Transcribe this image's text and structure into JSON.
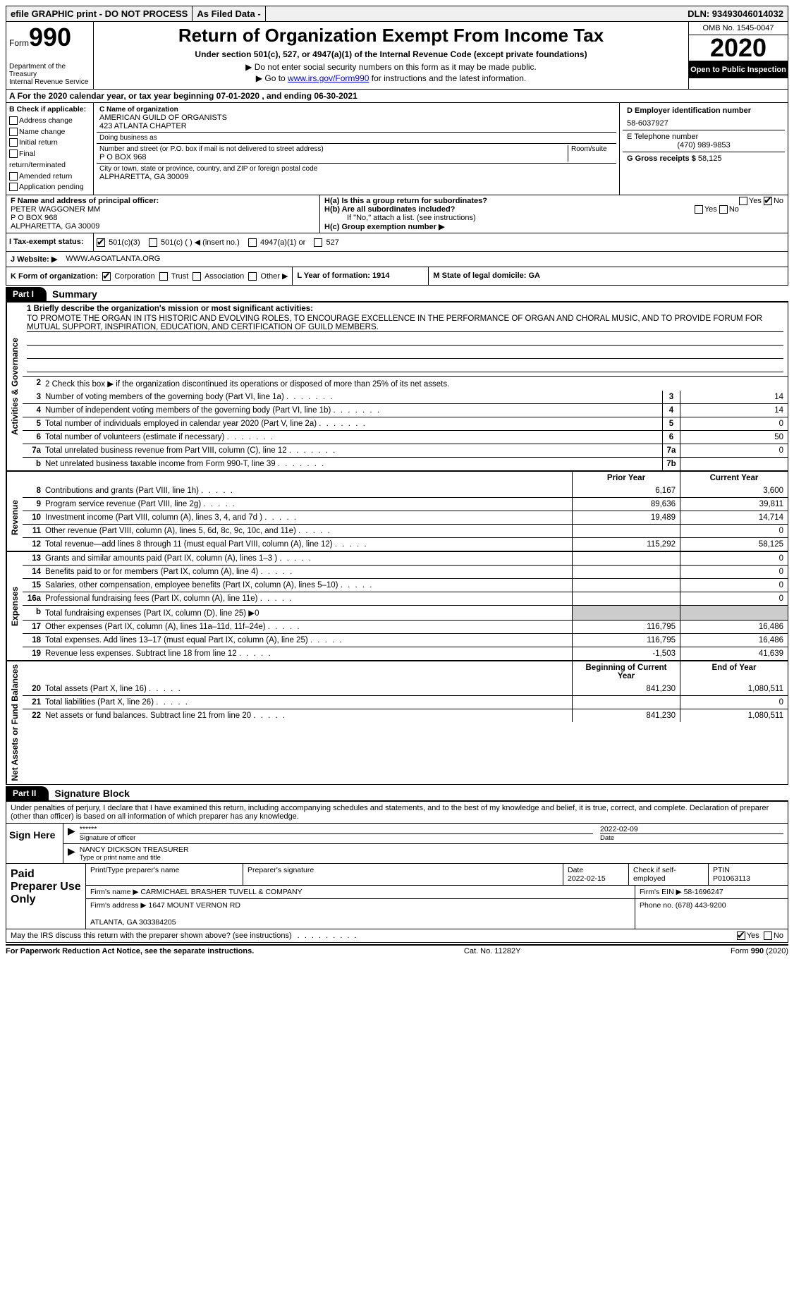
{
  "headerBar": {
    "efile": "efile GRAPHIC print - DO NOT PROCESS",
    "asFiled": "As Filed Data -",
    "dln": "DLN: 93493046014032"
  },
  "form": {
    "label": "Form",
    "number": "990",
    "dept": "Department of the Treasury\nInternal Revenue Service",
    "title": "Return of Organization Exempt From Income Tax",
    "subtitle": "Under section 501(c), 527, or 4947(a)(1) of the Internal Revenue Code (except private foundations)",
    "note1": "▶ Do not enter social security numbers on this form as it may be made public.",
    "note2a": "▶ Go to ",
    "note2link": "www.irs.gov/Form990",
    "note2b": " for instructions and the latest information.",
    "omb": "OMB No. 1545-0047",
    "year": "2020",
    "openPublic": "Open to Public Inspection"
  },
  "sectionA": "For the 2020 calendar year, or tax year beginning 07-01-2020   , and ending 06-30-2021",
  "sectionB": {
    "title": "B Check if applicable:",
    "items": [
      "Address change",
      "Name change",
      "Initial return",
      "Final return/terminated",
      "Amended return",
      "Application pending"
    ]
  },
  "sectionC": {
    "nameLabel": "C Name of organization",
    "name": "AMERICAN GUILD OF ORGANISTS\n423 ATLANTA CHAPTER",
    "dbaLabel": "Doing business as",
    "dba": "",
    "addrLabel": "Number and street (or P.O. box if mail is not delivered to street address)",
    "addr": "P O BOX 968",
    "roomLabel": "Room/suite",
    "cityLabel": "City or town, state or province, country, and ZIP or foreign postal code",
    "city": "ALPHARETTA, GA  30009"
  },
  "sectionD": {
    "label": "D Employer identification number",
    "val": "58-6037927"
  },
  "sectionE": {
    "label": "E Telephone number",
    "val": "(470) 989-9853"
  },
  "sectionG": {
    "label": "G Gross receipts $",
    "val": "58,125"
  },
  "sectionF": {
    "label": "F  Name and address of principal officer:",
    "lines": [
      "PETER WAGGONER MM",
      "P O BOX 968",
      "ALPHARETTA, GA  30009"
    ]
  },
  "sectionH": {
    "a": "H(a)  Is this a group return for subordinates?",
    "b": "H(b)  Are all subordinates included?",
    "bNote": "If \"No,\" attach a list. (see instructions)",
    "c": "H(c)  Group exemption number ▶",
    "yes": "Yes",
    "no": "No"
  },
  "sectionI": {
    "label": "I   Tax-exempt status:",
    "opts": [
      "501(c)(3)",
      "501(c) (    ) ◀ (insert no.)",
      "4947(a)(1) or",
      "527"
    ]
  },
  "sectionJ": {
    "label": "J   Website: ▶",
    "val": "WWW.AGOATLANTA.ORG"
  },
  "sectionK": {
    "label": "K Form of organization:",
    "opts": [
      "Corporation",
      "Trust",
      "Association",
      "Other ▶"
    ],
    "l": "L Year of formation: 1914",
    "m": "M State of legal domicile: GA"
  },
  "part1": {
    "tab": "Part I",
    "title": "Summary",
    "missionLabel": "1  Briefly describe the organization's mission or most significant activities:",
    "mission": "TO PROMOTE THE ORGAN IN ITS HISTORIC AND EVOLVING ROLES, TO ENCOURAGE EXCELLENCE IN THE PERFORMANCE OF ORGAN AND CHORAL MUSIC, AND TO PROVIDE FORUM FOR MUTUAL SUPPORT, INSPIRATION, EDUCATION, AND CERTIFICATION OF GUILD MEMBERS.",
    "line2": "2   Check this box ▶      if the organization discontinued its operations or disposed of more than 25% of its net assets.",
    "sideLabels": [
      "Activities & Governance",
      "Revenue",
      "Expenses",
      "Net Assets or Fund Balances"
    ],
    "govLines": [
      {
        "n": "3",
        "d": "Number of voting members of the governing body (Part VI, line 1a)",
        "b": "3",
        "v": "14"
      },
      {
        "n": "4",
        "d": "Number of independent voting members of the governing body (Part VI, line 1b)",
        "b": "4",
        "v": "14"
      },
      {
        "n": "5",
        "d": "Total number of individuals employed in calendar year 2020 (Part V, line 2a)",
        "b": "5",
        "v": "0"
      },
      {
        "n": "6",
        "d": "Total number of volunteers (estimate if necessary)",
        "b": "6",
        "v": "50"
      },
      {
        "n": "7a",
        "d": "Total unrelated business revenue from Part VIII, column (C), line 12",
        "b": "7a",
        "v": "0"
      },
      {
        "n": "b",
        "d": "Net unrelated business taxable income from Form 990-T, line 39",
        "b": "7b",
        "v": ""
      }
    ],
    "colHeaders": {
      "prior": "Prior Year",
      "current": "Current Year"
    },
    "revLines": [
      {
        "n": "8",
        "d": "Contributions and grants (Part VIII, line 1h)",
        "p": "6,167",
        "c": "3,600"
      },
      {
        "n": "9",
        "d": "Program service revenue (Part VIII, line 2g)",
        "p": "89,636",
        "c": "39,811"
      },
      {
        "n": "10",
        "d": "Investment income (Part VIII, column (A), lines 3, 4, and 7d )",
        "p": "19,489",
        "c": "14,714"
      },
      {
        "n": "11",
        "d": "Other revenue (Part VIII, column (A), lines 5, 6d, 8c, 9c, 10c, and 11e)",
        "p": "",
        "c": "0"
      },
      {
        "n": "12",
        "d": "Total revenue—add lines 8 through 11 (must equal Part VIII, column (A), line 12)",
        "p": "115,292",
        "c": "58,125"
      }
    ],
    "expLines": [
      {
        "n": "13",
        "d": "Grants and similar amounts paid (Part IX, column (A), lines 1–3 )",
        "p": "",
        "c": "0"
      },
      {
        "n": "14",
        "d": "Benefits paid to or for members (Part IX, column (A), line 4)",
        "p": "",
        "c": "0"
      },
      {
        "n": "15",
        "d": "Salaries, other compensation, employee benefits (Part IX, column (A), lines 5–10)",
        "p": "",
        "c": "0"
      },
      {
        "n": "16a",
        "d": "Professional fundraising fees (Part IX, column (A), line 11e)",
        "p": "",
        "c": "0"
      },
      {
        "n": "b",
        "d": "Total fundraising expenses (Part IX, column (D), line 25) ▶0",
        "p": null,
        "c": null
      },
      {
        "n": "17",
        "d": "Other expenses (Part IX, column (A), lines 11a–11d, 11f–24e)",
        "p": "116,795",
        "c": "16,486"
      },
      {
        "n": "18",
        "d": "Total expenses. Add lines 13–17 (must equal Part IX, column (A), line 25)",
        "p": "116,795",
        "c": "16,486"
      },
      {
        "n": "19",
        "d": "Revenue less expenses. Subtract line 18 from line 12",
        "p": "-1,503",
        "c": "41,639"
      }
    ],
    "balHeaders": {
      "begin": "Beginning of Current Year",
      "end": "End of Year"
    },
    "balLines": [
      {
        "n": "20",
        "d": "Total assets (Part X, line 16)",
        "p": "841,230",
        "c": "1,080,511"
      },
      {
        "n": "21",
        "d": "Total liabilities (Part X, line 26)",
        "p": "",
        "c": "0"
      },
      {
        "n": "22",
        "d": "Net assets or fund balances. Subtract line 21 from line 20",
        "p": "841,230",
        "c": "1,080,511"
      }
    ]
  },
  "part2": {
    "tab": "Part II",
    "title": "Signature Block",
    "intro": "Under penalties of perjury, I declare that I have examined this return, including accompanying schedules and statements, and to the best of my knowledge and belief, it is true, correct, and complete. Declaration of preparer (other than officer) is based on all information of which preparer has any knowledge.",
    "signHere": "Sign Here",
    "stars": "******",
    "sigOfficer": "Signature of officer",
    "date": "2022-02-09",
    "dateLabel": "Date",
    "name": "NANCY DICKSON TREASURER",
    "nameLabel": "Type or print name and title",
    "paidLabel": "Paid Preparer Use Only",
    "prepName": "Print/Type preparer's name",
    "prepSig": "Preparer's signature",
    "prepDate": "Date",
    "prepDateVal": "2022-02-15",
    "checkIf": "Check         if self-employed",
    "ptin": "PTIN",
    "ptinVal": "P01063113",
    "firmName": "Firm's name      ▶  CARMICHAEL BRASHER TUVELL & COMPANY",
    "firmEin": "Firm's EIN ▶  58-1696247",
    "firmAddr": "Firm's address  ▶  1647 MOUNT VERNON RD\n\n                                ATLANTA, GA  303384205",
    "phone": "Phone no. (678) 443-9200",
    "discuss": "May the IRS discuss this return with the preparer shown above? (see instructions)",
    "yes": "Yes",
    "no": "No"
  },
  "footer": {
    "paperwork": "For Paperwork Reduction Act Notice, see the separate instructions.",
    "cat": "Cat. No. 11282Y",
    "form": "Form 990 (2020)"
  }
}
